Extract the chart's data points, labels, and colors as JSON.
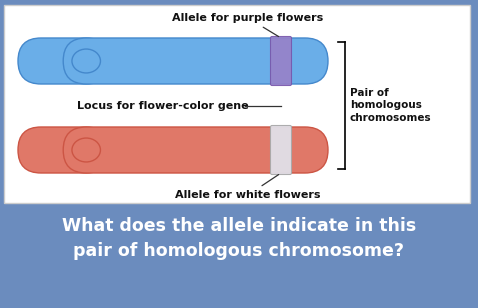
{
  "bg_color": "#6b8cbe",
  "chrom1_color": "#6aaee8",
  "chrom2_color": "#e07868",
  "chrom1_edge": "#4488cc",
  "chrom2_edge": "#cc5544",
  "allele1_color": "#9980c8",
  "allele2_color": "#e0e0e8",
  "allele1_edge": "#7755aa",
  "allele2_edge": "#aaaaaa",
  "white_box_color": "#ffffff",
  "white_box_edge": "#cccccc",
  "text_color_dark": "#111111",
  "text_color_white": "#ffffff",
  "label_allele1": "Allele for purple flowers",
  "label_allele2": "Allele for white flowers",
  "label_locus": "Locus for flower-color gene",
  "label_pair": "Pair of\nhomologous\nchromosomes",
  "question_line1": "What does the allele indicate in this",
  "question_line2": "pair of homologous chromosome?"
}
